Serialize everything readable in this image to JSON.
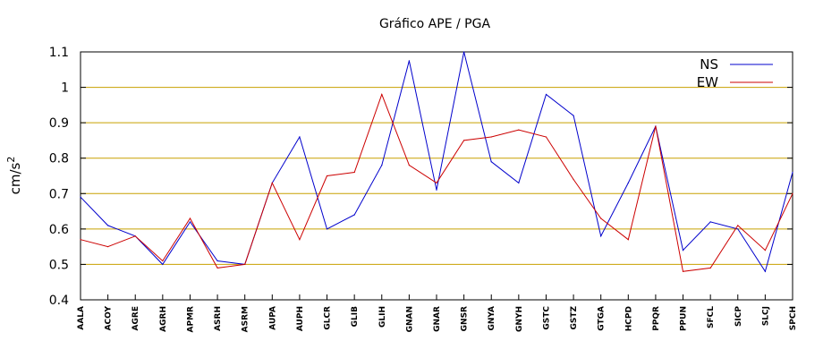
{
  "chart_data": {
    "type": "line",
    "title": "Gráfico  APE / PGA",
    "ylabel": "cm/s",
    "ylabel_superscript": "2",
    "xlabel": "",
    "ylim": [
      0.4,
      1.1
    ],
    "yticks": [
      "0.4",
      "0.5",
      "0.6",
      "0.7",
      "0.8",
      "0.9",
      "1",
      "1.1"
    ],
    "ytick_values": [
      0.4,
      0.5,
      0.6,
      0.7,
      0.8,
      0.9,
      1.0,
      1.1
    ],
    "grid": "horizontal",
    "grid_color": "#c8a000",
    "legend_position": "top-right",
    "categories": [
      "AALA",
      "ACOY",
      "AGRE",
      "AGRH",
      "APMR",
      "ASRH",
      "ASRM",
      "AUPA",
      "AUPH",
      "GLCR",
      "GLIB",
      "GLIH",
      "GNAN",
      "GNAR",
      "GNSR",
      "GNYA",
      "GNYH",
      "GSTC",
      "GSTZ",
      "GTGA",
      "HCPD",
      "PPQR",
      "PPUN",
      "SFCL",
      "SICP",
      "SLCJ",
      "SPCH"
    ],
    "series": [
      {
        "name": "NS",
        "color": "#0000cc",
        "values": [
          0.69,
          0.61,
          0.58,
          0.5,
          0.62,
          0.51,
          0.5,
          0.73,
          0.86,
          0.6,
          0.64,
          0.78,
          1.075,
          0.71,
          1.1,
          0.79,
          0.73,
          0.98,
          0.92,
          0.58,
          0.73,
          0.89,
          0.54,
          0.62,
          0.6,
          0.48,
          0.76
        ]
      },
      {
        "name": "EW",
        "color": "#cc0000",
        "values": [
          0.57,
          0.55,
          0.58,
          0.51,
          0.63,
          0.49,
          0.5,
          0.73,
          0.57,
          0.75,
          0.76,
          0.98,
          0.78,
          0.73,
          0.85,
          0.86,
          0.88,
          0.86,
          0.74,
          0.63,
          0.57,
          0.89,
          0.48,
          0.49,
          0.61,
          0.54,
          0.7
        ]
      }
    ]
  }
}
